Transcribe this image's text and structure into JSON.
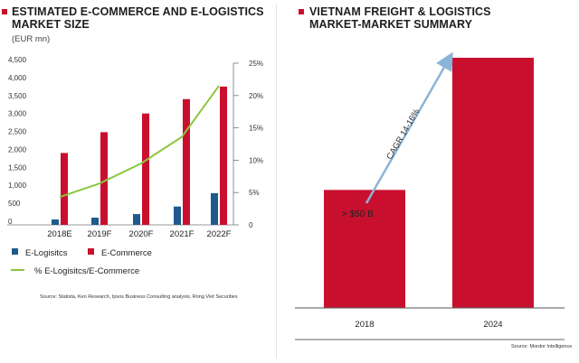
{
  "left_panel": {
    "title_line1": "ESTIMATED E-COMMERCE AND E-LOGISTICS",
    "title_line2": "MARKET SIZE",
    "unit": "(EUR mn)",
    "source": "Source: Statista, Ken Research, Ipsos Business Consulting analysis, Rong Viet Securities",
    "legend": {
      "e_logistics": "E-Logisitcs",
      "e_commerce": "E-Commerce",
      "percent": "% E-Logisitcs/E-Commerce"
    }
  },
  "right_panel": {
    "title_line1": "VIETNAM FREIGHT & LOGISTICS",
    "title_line2": "MARKET-MARKET SUMMARY",
    "annotation": "> $50 B",
    "cagr_label": "CAGR 14-16%",
    "source": "Source: Mordor Intelligence"
  },
  "colors": {
    "red": "#c8102e",
    "blue": "#1f5a8c",
    "green": "#8cc63f",
    "arrow": "#8ab4d8"
  },
  "chart_data": [
    {
      "type": "bar",
      "title": "ESTIMATED E-COMMERCE AND E-LOGISTICS MARKET SIZE",
      "ylabel": "(EUR mn)",
      "categories": [
        "2018E",
        "2019F",
        "2020F",
        "2021F",
        "2022F"
      ],
      "ylim": [
        0,
        4500
      ],
      "y_ticks": [
        "4,500",
        "4,000",
        "3,500",
        "3,000",
        "2,500",
        "2,000",
        "1,500",
        "1,000",
        "500",
        "0"
      ],
      "y_tick_values": [
        4500,
        4000,
        3500,
        3000,
        2500,
        2000,
        1500,
        1000,
        500,
        0
      ],
      "y2lim": [
        0,
        25
      ],
      "y2_ticks": [
        "25%",
        "20%",
        "15%",
        "10%",
        "5%",
        "0"
      ],
      "y2_tick_values": [
        25,
        20,
        15,
        10,
        5,
        0
      ],
      "series": [
        {
          "name": "E-Logisitcs",
          "values": [
            150,
            200,
            300,
            510,
            880
          ]
        },
        {
          "name": "E-Commerce",
          "values": [
            2000,
            2580,
            3100,
            3500,
            3850
          ]
        },
        {
          "name": "% E-Logisitcs/E-Commerce",
          "axis": "y2",
          "values": [
            4.3,
            6.4,
            9.5,
            13.6,
            21.5
          ]
        }
      ]
    },
    {
      "type": "bar",
      "title": "VIETNAM FREIGHT & LOGISTICS MARKET-MARKET SUMMARY",
      "categories": [
        "2018",
        "2024"
      ],
      "values": [
        50,
        106
      ],
      "ylim": [
        0,
        110
      ]
    }
  ]
}
